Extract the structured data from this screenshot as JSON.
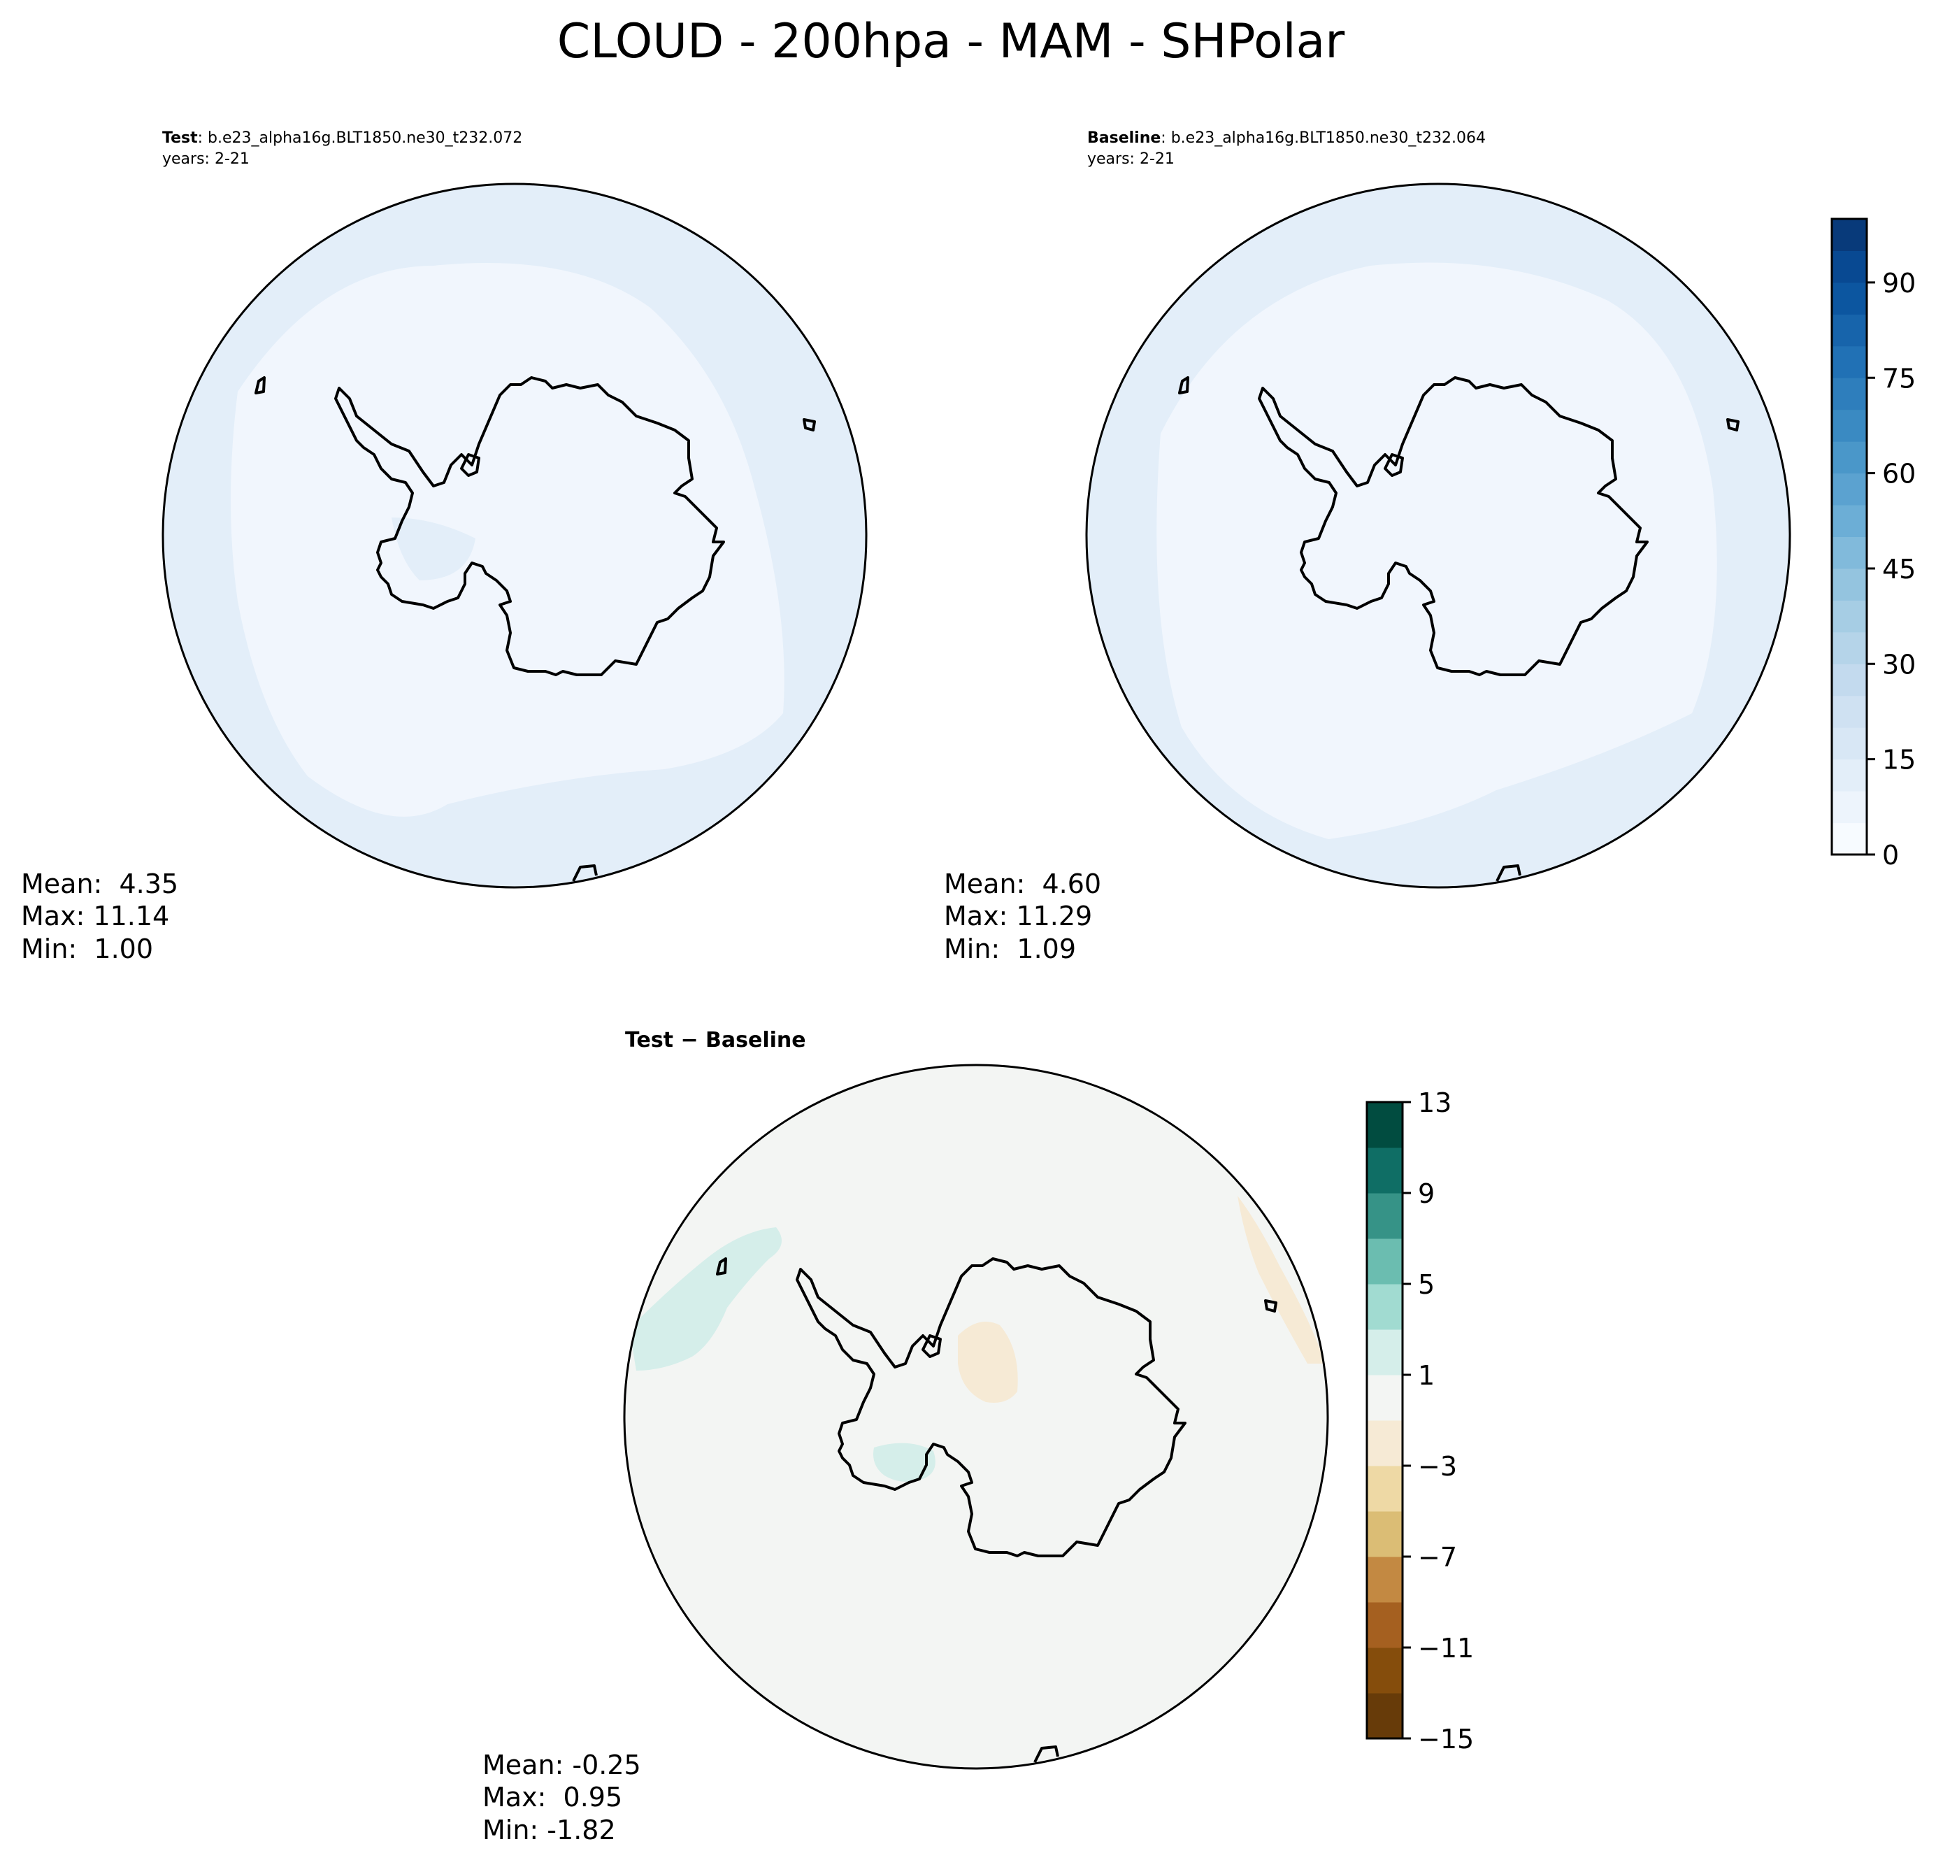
{
  "figure_title": "CLOUD - 200hpa - MAM - SHPolar",
  "colors": {
    "coast": "#000000",
    "abs_base": "#f1f6fd",
    "abs_band": "#e3eef9",
    "diff_base": "#f3f5f3",
    "diff_pos": "#d5eeea",
    "diff_neg": "#f6ead5"
  },
  "chart_data": [
    {
      "type": "heatmap",
      "panel": "test",
      "title_bold": "Test",
      "title_rest": ": b.e23_alpha16g.BLT1850.ne30_t232.072",
      "subtitle": "years: 2-21",
      "projection": "south polar stereographic",
      "stats": {
        "mean": "Mean:  4.35",
        "max": "Max: 11.14",
        "min": "Min:  1.00"
      },
      "values": {
        "mean": 4.35,
        "max": 11.14,
        "min": 1.0
      }
    },
    {
      "type": "heatmap",
      "panel": "baseline",
      "title_bold": "Baseline",
      "title_rest": ": b.e23_alpha16g.BLT1850.ne30_t232.064",
      "subtitle": "years: 2-21",
      "projection": "south polar stereographic",
      "stats": {
        "mean": "Mean:  4.60",
        "max": "Max: 11.29",
        "min": "Min:  1.09"
      },
      "values": {
        "mean": 4.6,
        "max": 11.29,
        "min": 1.09
      }
    },
    {
      "type": "heatmap",
      "panel": "difference",
      "title": "Test − Baseline",
      "projection": "south polar stereographic",
      "stats": {
        "mean": "Mean: -0.25",
        "max": "Max:  0.95",
        "min": "Min: -1.82"
      },
      "values": {
        "mean": -0.25,
        "max": 0.95,
        "min": -1.82
      }
    }
  ],
  "colorbars": {
    "absolute": {
      "range": [
        0,
        100
      ],
      "step": 5,
      "ticks": [
        0,
        15,
        30,
        45,
        60,
        75,
        90
      ],
      "tick_labels": [
        "0",
        "15",
        "30",
        "45",
        "60",
        "75",
        "90"
      ],
      "colors": [
        "#f7fbff",
        "#edf4fc",
        "#e3eef9",
        "#d8e7f5",
        "#cfe1f2",
        "#c3daee",
        "#b5d4e9",
        "#a6cde4",
        "#94c4df",
        "#81badb",
        "#6caed6",
        "#5ba2d0",
        "#4a97c9",
        "#3a8ac2",
        "#2e7ebc",
        "#2171b5",
        "#1764ab",
        "#0c56a0",
        "#084992",
        "#083a7a"
      ]
    },
    "difference": {
      "range": [
        -15,
        13
      ],
      "step": 2,
      "ticks": [
        -15,
        -11,
        -7,
        -3,
        1,
        5,
        9,
        13
      ],
      "tick_labels": [
        "−15",
        "−11",
        "−7",
        "−3",
        "1",
        "5",
        "9",
        "13"
      ],
      "colors": [
        "#673b09",
        "#854d0c",
        "#a56020",
        "#c38942",
        "#dbbd75",
        "#eed9a5",
        "#f6ead5",
        "#f3f5f3",
        "#d5eeea",
        "#a1dbd1",
        "#6bbdb0",
        "#369387",
        "#0f6e65",
        "#014c40"
      ]
    }
  }
}
